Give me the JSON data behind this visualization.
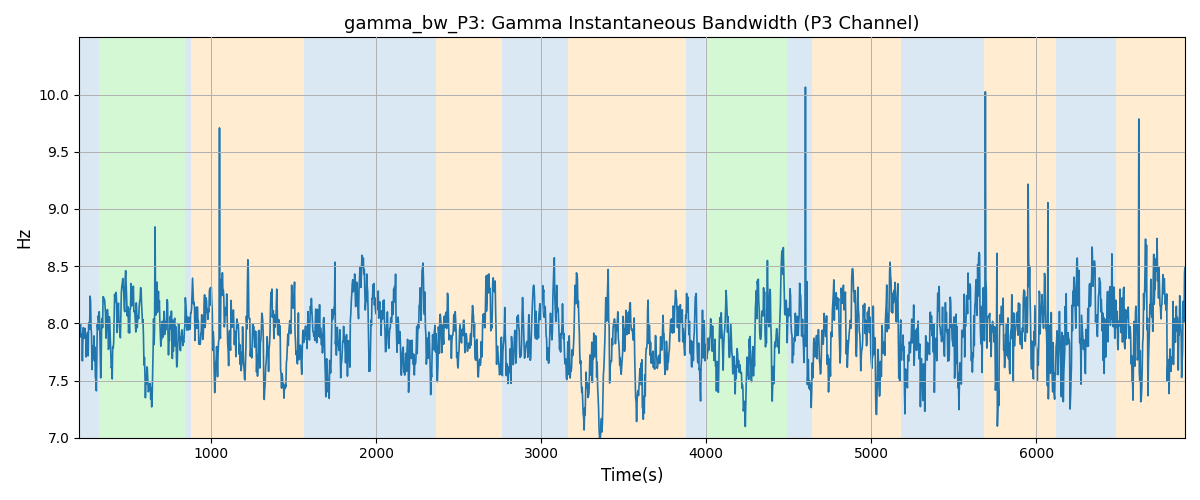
{
  "title": "gamma_bw_P3: Gamma Instantaneous Bandwidth (P3 Channel)",
  "xlabel": "Time(s)",
  "ylabel": "Hz",
  "ylim": [
    7.0,
    10.5
  ],
  "xlim": [
    200,
    6900
  ],
  "yticks": [
    7.0,
    7.5,
    8.0,
    8.5,
    9.0,
    9.5,
    10.0
  ],
  "xticks": [
    1000,
    2000,
    3000,
    4000,
    5000,
    6000
  ],
  "line_color": "#2176ae",
  "line_width": 1.2,
  "background_color": "#ffffff",
  "grid_color": "#b0b0b0",
  "bands": [
    {
      "xmin": 200,
      "xmax": 320,
      "color": "#aecde8",
      "alpha": 0.45
    },
    {
      "xmin": 320,
      "xmax": 840,
      "color": "#90ee90",
      "alpha": 0.38
    },
    {
      "xmin": 840,
      "xmax": 880,
      "color": "#aecde8",
      "alpha": 0.45
    },
    {
      "xmin": 880,
      "xmax": 1560,
      "color": "#ffd59b",
      "alpha": 0.45
    },
    {
      "xmin": 1560,
      "xmax": 2360,
      "color": "#aecde8",
      "alpha": 0.45
    },
    {
      "xmin": 2360,
      "xmax": 2760,
      "color": "#ffd59b",
      "alpha": 0.45
    },
    {
      "xmin": 2760,
      "xmax": 3160,
      "color": "#aecde8",
      "alpha": 0.45
    },
    {
      "xmin": 3160,
      "xmax": 3880,
      "color": "#ffd59b",
      "alpha": 0.45
    },
    {
      "xmin": 3880,
      "xmax": 3990,
      "color": "#aecde8",
      "alpha": 0.45
    },
    {
      "xmin": 3990,
      "xmax": 4490,
      "color": "#90ee90",
      "alpha": 0.38
    },
    {
      "xmin": 4490,
      "xmax": 4640,
      "color": "#aecde8",
      "alpha": 0.45
    },
    {
      "xmin": 4640,
      "xmax": 5180,
      "color": "#ffd59b",
      "alpha": 0.45
    },
    {
      "xmin": 5180,
      "xmax": 5680,
      "color": "#aecde8",
      "alpha": 0.45
    },
    {
      "xmin": 5680,
      "xmax": 6120,
      "color": "#ffd59b",
      "alpha": 0.45
    },
    {
      "xmin": 6120,
      "xmax": 6480,
      "color": "#aecde8",
      "alpha": 0.45
    },
    {
      "xmin": 6480,
      "xmax": 6900,
      "color": "#ffd59b",
      "alpha": 0.45
    }
  ],
  "t_start": 200,
  "t_end": 6900,
  "n_points": 2300,
  "base_value": 7.97,
  "noise_scale": 0.14,
  "seed": 7
}
